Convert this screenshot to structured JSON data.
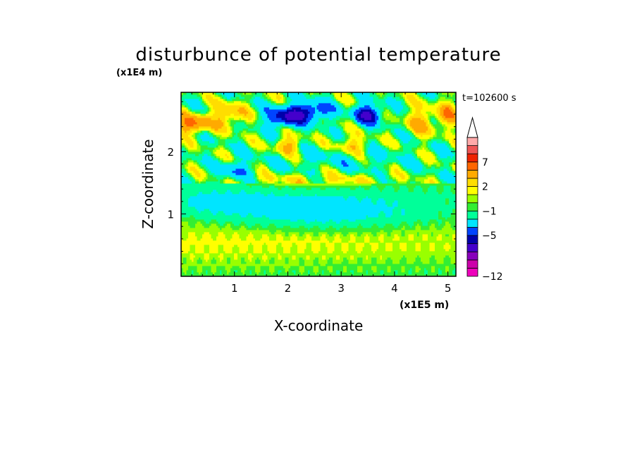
{
  "chart_data": {
    "type": "heatmap",
    "title": "disturbunce of potential temperature",
    "xlabel": "X-coordinate",
    "ylabel": "Z-coordinate",
    "x_unit": "(x1E5 m)",
    "y_unit": "(x1E4 m)",
    "time_label": "t=102600 s",
    "xlim": [
      0,
      5.15
    ],
    "ylim": [
      0,
      2.95
    ],
    "x_ticks": [
      "1",
      "2",
      "3",
      "4",
      "5"
    ],
    "y_ticks": [
      "1",
      "2"
    ],
    "colorbar": {
      "labels": [
        {
          "text": "7",
          "value": 7
        },
        {
          "text": "2",
          "value": 2
        },
        {
          "text": "−1",
          "value": -1
        },
        {
          "text": "−5",
          "value": -5
        },
        {
          "text": "−12",
          "value": -12
        }
      ],
      "colors": [
        "#ee00bb",
        "#cc00aa",
        "#8800bb",
        "#4400cc",
        "#0000aa",
        "#0044ff",
        "#00e5ff",
        "#00ff99",
        "#33ee33",
        "#99ff00",
        "#ffff00",
        "#ffdd00",
        "#ffaa00",
        "#ff6600",
        "#ee2200",
        "#ee5555",
        "#ffaaaa"
      ]
    },
    "field_features": [
      {
        "x": 0.6,
        "z": 0.55,
        "rx": 8.5,
        "rz": 0.4,
        "v": 1.2
      },
      {
        "x": 2.6,
        "z": 1.05,
        "rx": 1.8,
        "rz": 0.28,
        "v": -2.2
      },
      {
        "x": 0.7,
        "z": 1.2,
        "rx": 0.9,
        "rz": 0.2,
        "v": -1.3
      },
      {
        "x": 2.6,
        "z": 1.55,
        "rx": 1.5,
        "rz": 0.1,
        "v": 1.8
      },
      {
        "x": 3.0,
        "z": 1.9,
        "rx": 1.3,
        "rz": 0.2,
        "v": -1.2
      },
      {
        "x": 0.2,
        "z": 2.45,
        "rx": 0.35,
        "rz": 0.15,
        "v": 5.5
      },
      {
        "x": 0.9,
        "z": 2.6,
        "rx": 0.3,
        "rz": 0.2,
        "v": 3.5
      },
      {
        "x": 1.95,
        "z": 2.55,
        "rx": 0.35,
        "rz": 0.15,
        "v": -6.0
      },
      {
        "x": 2.4,
        "z": 2.65,
        "rx": 0.4,
        "rz": 0.15,
        "v": -5.5
      },
      {
        "x": 3.5,
        "z": 2.6,
        "rx": 0.25,
        "rz": 0.15,
        "v": -7.0
      },
      {
        "x": 3.2,
        "z": 2.1,
        "rx": 0.3,
        "rz": 0.15,
        "v": 3.0
      },
      {
        "x": 2.0,
        "z": 2.1,
        "rx": 0.25,
        "rz": 0.15,
        "v": 3.5
      },
      {
        "x": 4.5,
        "z": 2.5,
        "rx": 0.3,
        "rz": 0.25,
        "v": 3.0
      },
      {
        "x": 5.0,
        "z": 2.6,
        "rx": 0.2,
        "rz": 0.2,
        "v": 4.0
      },
      {
        "x": 1.0,
        "z": 1.7,
        "rx": 0.3,
        "rz": 0.15,
        "v": -3.0
      }
    ]
  }
}
